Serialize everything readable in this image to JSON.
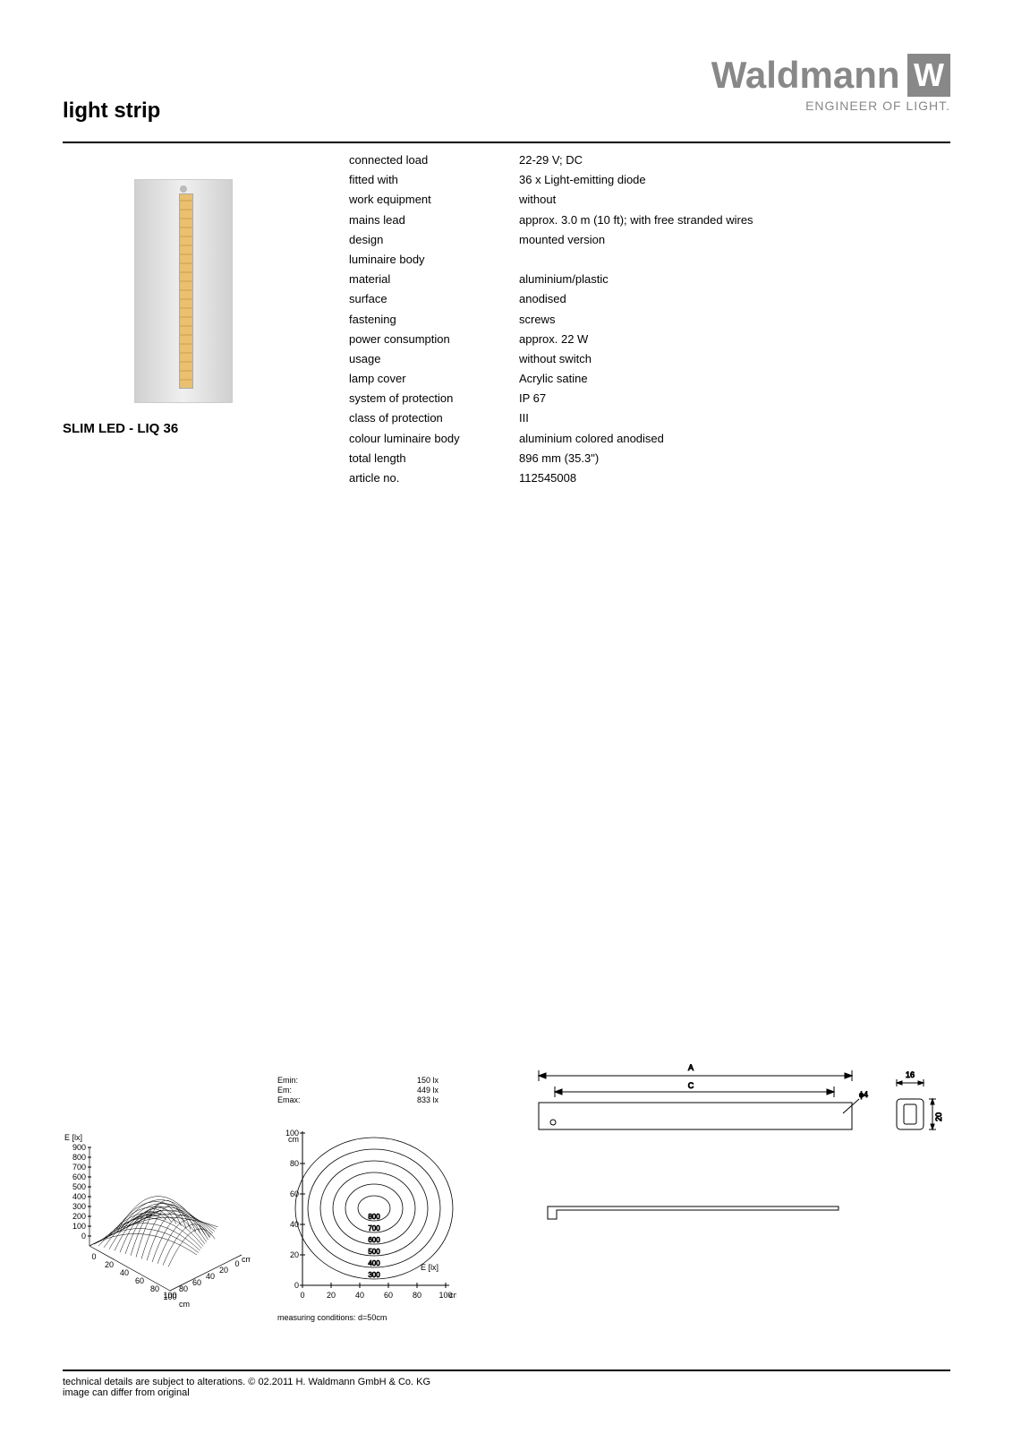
{
  "header": {
    "title": "light strip",
    "brand": "Waldmann",
    "brand_letter": "W",
    "tagline": "ENGINEER OF LIGHT."
  },
  "product": {
    "name": "SLIM LED - LIQ 36"
  },
  "specs": [
    {
      "label": "connected load",
      "value": "22-29 V; DC"
    },
    {
      "label": "fitted with",
      "value": "36 x Light-emitting diode"
    },
    {
      "label": "work equipment",
      "value": "without"
    },
    {
      "label": "mains lead",
      "value": "approx. 3.0 m (10 ft); with free stranded wires"
    },
    {
      "label": "design",
      "value": "mounted version"
    },
    {
      "label": "luminaire body",
      "value": ""
    },
    {
      "label": "material",
      "value": "aluminium/plastic",
      "sub": true
    },
    {
      "label": "surface",
      "value": "anodised",
      "sub": true
    },
    {
      "label": "fastening",
      "value": "screws"
    },
    {
      "label": "power consumption",
      "value": "approx. 22 W"
    },
    {
      "label": "usage",
      "value": "without switch"
    },
    {
      "label": "lamp cover",
      "value": "Acrylic satine"
    },
    {
      "label": "system of protection",
      "value": "IP 67"
    },
    {
      "label": "class of protection",
      "value": "III"
    },
    {
      "label": "colour luminaire body",
      "value": "aluminium colored anodised"
    },
    {
      "label": "total length",
      "value": "896 mm (35.3\")"
    },
    {
      "label": "article no.",
      "value": "112545008"
    }
  ],
  "chart3d": {
    "y_axis_label": "E [lx]",
    "y_ticks": [
      "900",
      "800",
      "700",
      "600",
      "500",
      "400",
      "300",
      "200",
      "100",
      "0"
    ],
    "x1_ticks": [
      "0",
      "20",
      "40",
      "60",
      "80",
      "100"
    ],
    "x1_unit": "cm",
    "x2_ticks": [
      "0",
      "20",
      "40",
      "60",
      "80",
      "100"
    ],
    "x2_unit": "cm",
    "surface_color": "#000000",
    "grid_color": "#333333"
  },
  "contour": {
    "stats": [
      {
        "label": "Emin:",
        "value": "150 lx"
      },
      {
        "label": "Em:",
        "value": "449 lx"
      },
      {
        "label": "Emax:",
        "value": "833 lx"
      }
    ],
    "y_ticks": [
      "100",
      "80",
      "60",
      "40",
      "20",
      "0"
    ],
    "y_unit": "cm",
    "x_ticks": [
      "0",
      "20",
      "40",
      "60",
      "80",
      "100"
    ],
    "x_unit": "cm",
    "x_axis_label": "E [lx]",
    "levels": [
      "800",
      "700",
      "600",
      "500",
      "400",
      "300"
    ],
    "line_color": "#000000",
    "note": "measuring conditions: d=50cm"
  },
  "dimensions": {
    "label_A": "A",
    "label_C": "C",
    "label_diam": "ϕ4",
    "label_w": "16",
    "label_h": "20"
  },
  "footer": {
    "line1": "technical details are subject to alterations. © 02.2011 H. Waldmann GmbH & Co. KG",
    "line2": "image can differ from original"
  }
}
